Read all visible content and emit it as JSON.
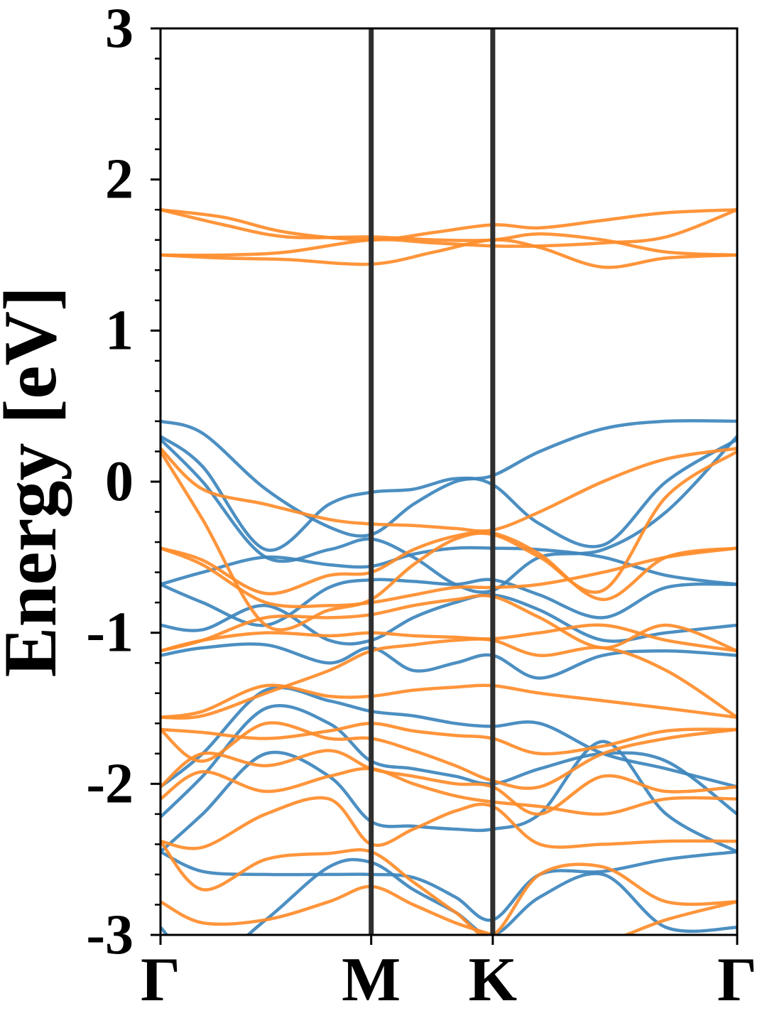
{
  "chart_data": {
    "type": "line",
    "title": "",
    "xlabel": "",
    "ylabel": "Energy [eV]",
    "ylim": [
      -3,
      3
    ],
    "y_ticks": [
      "3",
      "2",
      "1",
      "0",
      "-1",
      "-2",
      "-3"
    ],
    "y_tick_values": [
      3,
      2,
      1,
      0,
      -1,
      -2,
      -3
    ],
    "y_minor_step": 0.2,
    "x_range": [
      0,
      2.737
    ],
    "x_ticks": [
      {
        "label": "Γ",
        "x": 0
      },
      {
        "label": "M",
        "x": 1.0
      },
      {
        "label": "K",
        "x": 1.577
      },
      {
        "label": "Γ",
        "x": 2.737
      }
    ],
    "grid": false,
    "legend": "none",
    "colors": {
      "series_a": "#3d85bd",
      "series_b": "#ff8c2a",
      "path_divider": "#2f2f2f"
    },
    "series": [
      {
        "group": "a",
        "x": [
          0,
          0.2,
          0.5,
          0.8,
          1.0,
          1.2,
          1.4,
          1.577,
          1.8,
          2.1,
          2.4,
          2.737
        ],
        "y": [
          0.4,
          0.32,
          -0.05,
          -0.3,
          -0.35,
          -0.15,
          0.0,
          0.04,
          0.2,
          0.35,
          0.4,
          0.4
        ]
      },
      {
        "group": "a",
        "x": [
          0,
          0.2,
          0.5,
          0.8,
          1.0,
          1.2,
          1.4,
          1.577,
          1.8,
          2.1,
          2.4,
          2.737
        ],
        "y": [
          0.3,
          0.1,
          -0.45,
          -0.15,
          -0.07,
          -0.05,
          0.02,
          -0.02,
          -0.28,
          -0.42,
          0.0,
          0.28
        ]
      },
      {
        "group": "a",
        "x": [
          0,
          0.2,
          0.5,
          0.8,
          1.0,
          1.2,
          1.4,
          1.577,
          1.8,
          2.1,
          2.4,
          2.737
        ],
        "y": [
          0.28,
          0.0,
          -0.5,
          -0.45,
          -0.38,
          -0.5,
          -0.68,
          -0.72,
          -0.5,
          -0.45,
          -0.2,
          0.3
        ]
      },
      {
        "group": "a",
        "x": [
          0,
          0.2,
          0.5,
          0.8,
          1.0,
          1.2,
          1.4,
          1.577,
          1.8,
          2.1,
          2.4,
          2.737
        ],
        "y": [
          -0.68,
          -0.6,
          -0.5,
          -0.55,
          -0.56,
          -0.48,
          -0.44,
          -0.44,
          -0.45,
          -0.5,
          -0.62,
          -0.68
        ]
      },
      {
        "group": "a",
        "x": [
          0,
          0.2,
          0.5,
          0.8,
          1.0,
          1.2,
          1.4,
          1.577,
          1.8,
          2.1,
          2.4,
          2.737
        ],
        "y": [
          -0.68,
          -0.8,
          -0.95,
          -0.7,
          -0.65,
          -0.66,
          -0.68,
          -0.65,
          -0.75,
          -0.9,
          -0.7,
          -0.68
        ]
      },
      {
        "group": "a",
        "x": [
          0,
          0.2,
          0.5,
          0.8,
          1.0,
          1.2,
          1.4,
          1.577,
          1.8,
          2.1,
          2.4,
          2.737
        ],
        "y": [
          -0.95,
          -0.98,
          -0.82,
          -1.05,
          -1.05,
          -0.9,
          -0.8,
          -0.75,
          -0.85,
          -1.05,
          -1.0,
          -0.95
        ]
      },
      {
        "group": "a",
        "x": [
          0,
          0.2,
          0.5,
          0.8,
          1.0,
          1.2,
          1.4,
          1.577,
          1.8,
          2.1,
          2.4,
          2.737
        ],
        "y": [
          -1.15,
          -1.1,
          -1.08,
          -1.2,
          -1.1,
          -1.25,
          -1.2,
          -1.15,
          -1.3,
          -1.15,
          -1.12,
          -1.15
        ]
      },
      {
        "group": "a",
        "x": [
          0,
          0.2,
          0.5,
          0.8,
          1.0,
          1.2,
          1.4,
          1.577,
          1.8,
          2.1,
          2.4,
          2.737
        ],
        "y": [
          -2.02,
          -1.8,
          -1.38,
          -1.45,
          -1.52,
          -1.55,
          -1.6,
          -1.62,
          -1.6,
          -1.8,
          -1.9,
          -2.02
        ]
      },
      {
        "group": "a",
        "x": [
          0,
          0.2,
          0.5,
          0.8,
          1.0,
          1.2,
          1.4,
          1.577,
          1.8,
          2.1,
          2.4,
          2.737
        ],
        "y": [
          -2.22,
          -1.95,
          -1.5,
          -1.6,
          -1.85,
          -1.9,
          -1.95,
          -2.0,
          -1.9,
          -1.8,
          -1.85,
          -2.2
        ]
      },
      {
        "group": "a",
        "x": [
          0,
          0.2,
          0.5,
          0.8,
          1.0,
          1.2,
          1.4,
          1.577,
          1.8,
          2.1,
          2.4,
          2.737
        ],
        "y": [
          -2.45,
          -2.2,
          -1.8,
          -1.95,
          -2.25,
          -2.28,
          -2.3,
          -2.3,
          -2.2,
          -1.72,
          -2.2,
          -2.45
        ]
      },
      {
        "group": "a",
        "x": [
          0,
          0.2,
          0.5,
          0.8,
          1.0,
          1.2,
          1.4,
          1.577,
          1.8,
          2.1,
          2.4,
          2.737
        ],
        "y": [
          -2.45,
          -2.58,
          -2.6,
          -2.6,
          -2.6,
          -2.62,
          -2.75,
          -2.9,
          -2.6,
          -2.58,
          -2.5,
          -2.45
        ]
      },
      {
        "group": "a",
        "x": [
          0,
          0.2,
          0.5,
          0.8,
          1.0,
          1.2,
          1.4,
          1.577,
          1.8,
          2.1,
          2.4,
          2.737
        ],
        "y": [
          -2.95,
          -3.2,
          -2.9,
          -2.55,
          -2.52,
          -2.7,
          -2.85,
          -3.0,
          -2.75,
          -2.6,
          -2.95,
          -2.95
        ]
      },
      {
        "group": "b",
        "x": [
          0,
          0.3,
          0.6,
          1.0,
          1.3,
          1.577,
          1.8,
          2.1,
          2.4,
          2.737
        ],
        "y": [
          1.8,
          1.75,
          1.65,
          1.6,
          1.65,
          1.7,
          1.68,
          1.73,
          1.78,
          1.8
        ]
      },
      {
        "group": "b",
        "x": [
          0,
          0.3,
          0.6,
          1.0,
          1.3,
          1.577,
          1.8,
          2.1,
          2.4,
          2.737
        ],
        "y": [
          1.8,
          1.7,
          1.62,
          1.62,
          1.6,
          1.6,
          1.64,
          1.6,
          1.52,
          1.5
        ]
      },
      {
        "group": "b",
        "x": [
          0,
          0.3,
          0.6,
          1.0,
          1.3,
          1.577,
          1.8,
          2.1,
          2.4,
          2.737
        ],
        "y": [
          1.5,
          1.5,
          1.52,
          1.6,
          1.58,
          1.56,
          1.56,
          1.58,
          1.62,
          1.8
        ]
      },
      {
        "group": "b",
        "x": [
          0,
          0.3,
          0.6,
          1.0,
          1.3,
          1.577,
          1.8,
          2.1,
          2.4,
          2.737
        ],
        "y": [
          1.5,
          1.48,
          1.47,
          1.44,
          1.52,
          1.6,
          1.55,
          1.42,
          1.48,
          1.5
        ]
      },
      {
        "group": "b",
        "x": [
          0,
          0.2,
          0.5,
          0.8,
          1.0,
          1.2,
          1.4,
          1.577,
          1.8,
          2.1,
          2.4,
          2.737
        ],
        "y": [
          0.22,
          -0.05,
          -0.15,
          -0.25,
          -0.28,
          -0.29,
          -0.31,
          -0.32,
          -0.2,
          0.0,
          0.15,
          0.22
        ]
      },
      {
        "group": "b",
        "x": [
          0,
          0.2,
          0.5,
          0.8,
          1.0,
          1.2,
          1.4,
          1.577,
          1.8,
          2.1,
          2.4,
          2.737
        ],
        "y": [
          0.2,
          -0.25,
          -0.95,
          -0.85,
          -0.78,
          -0.55,
          -0.38,
          -0.35,
          -0.5,
          -0.72,
          -0.1,
          0.2
        ]
      },
      {
        "group": "b",
        "x": [
          0,
          0.2,
          0.5,
          0.8,
          1.0,
          1.2,
          1.4,
          1.577,
          1.8,
          2.1,
          2.4,
          2.737
        ],
        "y": [
          -0.44,
          -0.52,
          -0.74,
          -0.62,
          -0.6,
          -0.45,
          -0.36,
          -0.34,
          -0.48,
          -0.78,
          -0.5,
          -0.44
        ]
      },
      {
        "group": "b",
        "x": [
          0,
          0.2,
          0.5,
          0.8,
          1.0,
          1.2,
          1.4,
          1.577,
          1.8,
          2.1,
          2.4,
          2.737
        ],
        "y": [
          -0.44,
          -0.55,
          -0.8,
          -0.82,
          -0.8,
          -0.75,
          -0.7,
          -0.7,
          -0.68,
          -0.6,
          -0.5,
          -0.44
        ]
      },
      {
        "group": "b",
        "x": [
          0,
          0.2,
          0.5,
          0.8,
          1.0,
          1.2,
          1.4,
          1.577,
          1.8,
          2.1,
          2.4,
          2.737
        ],
        "y": [
          -1.12,
          -1.05,
          -0.9,
          -0.9,
          -0.88,
          -0.82,
          -0.78,
          -0.76,
          -0.9,
          -1.1,
          -0.95,
          -1.12
        ]
      },
      {
        "group": "b",
        "x": [
          0,
          0.2,
          0.5,
          0.8,
          1.0,
          1.2,
          1.4,
          1.577,
          1.8,
          2.1,
          2.4,
          2.737
        ],
        "y": [
          -1.12,
          -1.05,
          -1.0,
          -1.02,
          -1.0,
          -1.02,
          -1.03,
          -1.04,
          -1.0,
          -0.95,
          -1.05,
          -1.12
        ]
      },
      {
        "group": "b",
        "x": [
          0,
          0.2,
          0.5,
          0.8,
          1.0,
          1.2,
          1.4,
          1.577,
          1.8,
          2.1,
          2.4,
          2.737
        ],
        "y": [
          -1.56,
          -1.55,
          -1.4,
          -1.25,
          -1.12,
          -1.08,
          -1.05,
          -1.05,
          -1.15,
          -1.1,
          -1.25,
          -1.56
        ]
      },
      {
        "group": "b",
        "x": [
          0,
          0.2,
          0.5,
          0.8,
          1.0,
          1.2,
          1.4,
          1.577,
          1.8,
          2.1,
          2.4,
          2.737
        ],
        "y": [
          -1.56,
          -1.52,
          -1.35,
          -1.42,
          -1.42,
          -1.38,
          -1.36,
          -1.35,
          -1.4,
          -1.45,
          -1.5,
          -1.56
        ]
      },
      {
        "group": "b",
        "x": [
          0,
          0.2,
          0.5,
          0.8,
          1.0,
          1.2,
          1.4,
          1.577,
          1.8,
          2.1,
          2.4,
          2.737
        ],
        "y": [
          -1.64,
          -1.66,
          -1.7,
          -1.65,
          -1.6,
          -1.65,
          -1.68,
          -1.7,
          -1.8,
          -1.75,
          -1.65,
          -1.64
        ]
      },
      {
        "group": "b",
        "x": [
          0,
          0.2,
          0.5,
          0.8,
          1.0,
          1.2,
          1.4,
          1.577,
          1.8,
          2.1,
          2.4,
          2.737
        ],
        "y": [
          -1.64,
          -1.85,
          -1.6,
          -1.7,
          -1.7,
          -1.78,
          -1.88,
          -1.98,
          -2.02,
          -1.8,
          -1.7,
          -1.64
        ]
      },
      {
        "group": "b",
        "x": [
          0,
          0.2,
          0.5,
          0.8,
          1.0,
          1.2,
          1.4,
          1.577,
          1.8,
          2.1,
          2.4,
          2.737
        ],
        "y": [
          -2.02,
          -1.8,
          -1.88,
          -1.78,
          -1.9,
          -1.95,
          -2.0,
          -2.02,
          -2.2,
          -1.95,
          -2.05,
          -2.02
        ]
      },
      {
        "group": "b",
        "x": [
          0,
          0.2,
          0.5,
          0.8,
          1.0,
          1.2,
          1.4,
          1.577,
          1.8,
          2.1,
          2.4,
          2.737
        ],
        "y": [
          -2.1,
          -1.92,
          -2.05,
          -1.95,
          -1.9,
          -2.0,
          -2.08,
          -2.12,
          -2.15,
          -2.2,
          -2.1,
          -2.1
        ]
      },
      {
        "group": "b",
        "x": [
          0,
          0.2,
          0.5,
          0.8,
          1.0,
          1.2,
          1.4,
          1.577,
          1.8,
          2.1,
          2.4,
          2.737
        ],
        "y": [
          -2.38,
          -2.42,
          -2.2,
          -2.1,
          -2.4,
          -2.3,
          -2.18,
          -2.15,
          -2.4,
          -2.4,
          -2.38,
          -2.38
        ]
      },
      {
        "group": "b",
        "x": [
          0,
          0.2,
          0.5,
          0.8,
          1.0,
          1.2,
          1.4,
          1.577,
          1.8,
          2.1,
          2.4,
          2.737
        ],
        "y": [
          -2.38,
          -2.7,
          -2.5,
          -2.46,
          -2.45,
          -2.65,
          -2.85,
          -3.0,
          -2.6,
          -2.55,
          -2.78,
          -2.78
        ]
      },
      {
        "group": "b",
        "x": [
          0,
          0.2,
          0.5,
          0.8,
          1.0,
          1.2,
          1.4,
          1.577,
          1.8,
          2.1,
          2.4,
          2.737
        ],
        "y": [
          -2.78,
          -2.92,
          -2.9,
          -2.78,
          -2.68,
          -2.8,
          -2.92,
          -3.0,
          -3.1,
          -3.05,
          -2.9,
          -2.78
        ]
      }
    ]
  }
}
